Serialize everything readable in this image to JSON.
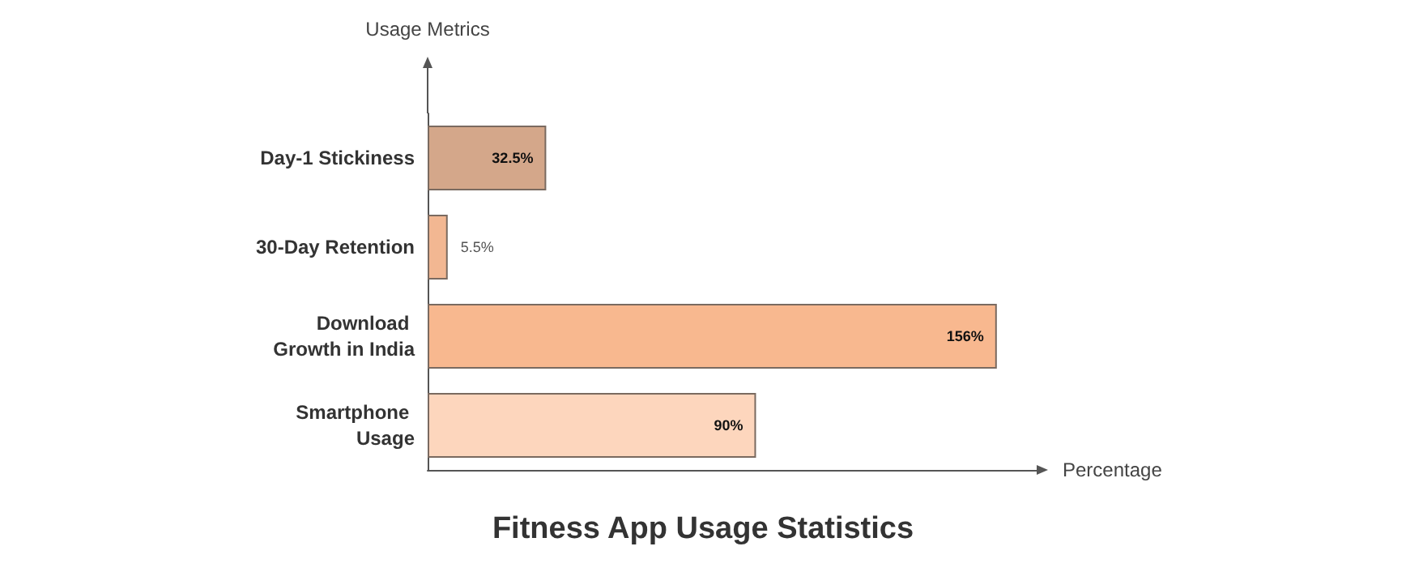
{
  "chart_data": {
    "type": "bar",
    "orientation": "horizontal",
    "title": "Fitness App Usage Statistics",
    "xlabel": "Percentage",
    "ylabel": "Usage Metrics",
    "categories": [
      "Day-1 Stickiness",
      "30-Day Retention",
      "Download Growth in India",
      "Smartphone Usage"
    ],
    "values": [
      32.5,
      5.5,
      156,
      90
    ],
    "colors": [
      "#d4a78a",
      "#f2b792",
      "#f8b88f",
      "#fdd6bd"
    ],
    "value_labels": [
      "32.5%",
      "5.5%",
      "156%",
      "90%"
    ]
  }
}
